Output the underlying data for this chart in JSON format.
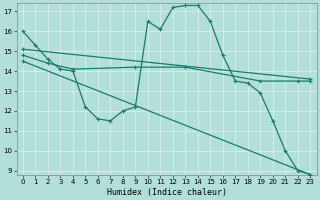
{
  "xlabel": "Humidex (Indice chaleur)",
  "background_color": "#b2dfd8",
  "grid_color": "#d4eeea",
  "line_color": "#1a7a6e",
  "xlim": [
    -0.5,
    23.5
  ],
  "ylim": [
    8.8,
    17.4
  ],
  "yticks": [
    9,
    10,
    11,
    12,
    13,
    14,
    15,
    16,
    17
  ],
  "xticks": [
    0,
    1,
    2,
    3,
    4,
    5,
    6,
    7,
    8,
    9,
    10,
    11,
    12,
    13,
    14,
    15,
    16,
    17,
    18,
    19,
    20,
    21,
    22,
    23
  ],
  "line1_x": [
    0,
    1,
    2,
    3,
    4,
    5,
    6,
    7,
    8,
    9,
    10,
    11,
    12,
    13,
    14,
    15,
    16,
    17,
    18,
    19,
    20,
    21,
    22,
    23
  ],
  "line1_y": [
    16.0,
    15.3,
    14.6,
    14.1,
    14.0,
    12.2,
    11.6,
    11.5,
    12.0,
    12.2,
    16.5,
    16.1,
    17.2,
    17.3,
    17.3,
    16.5,
    14.8,
    13.5,
    13.4,
    12.9,
    11.5,
    10.0,
    9.0,
    8.8
  ],
  "line2_x": [
    0,
    2,
    4,
    9,
    13,
    19,
    22,
    23
  ],
  "line2_y": [
    14.8,
    14.4,
    14.1,
    14.2,
    14.2,
    13.5,
    13.5,
    13.5
  ],
  "line3_x": [
    0,
    23
  ],
  "line3_y": [
    15.1,
    13.6
  ],
  "line4_x": [
    0,
    23
  ],
  "line4_y": [
    14.5,
    8.8
  ]
}
